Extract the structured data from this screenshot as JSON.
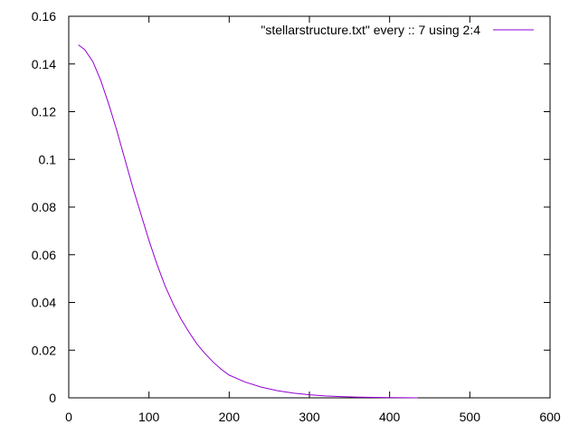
{
  "chart_data": {
    "type": "line",
    "title": "",
    "xlabel": "",
    "ylabel": "",
    "xlim": [
      0,
      600
    ],
    "ylim": [
      0,
      0.16
    ],
    "grid": false,
    "legend_position": "top-right",
    "x_ticks": [
      0,
      100,
      200,
      300,
      400,
      500,
      600
    ],
    "y_ticks": [
      0,
      0.02,
      0.04,
      0.06,
      0.08,
      0.1,
      0.12,
      0.14,
      0.16
    ],
    "x_tick_labels": [
      "0",
      "100",
      "200",
      "300",
      "400",
      "500",
      "600"
    ],
    "y_tick_labels": [
      "0",
      "0.02",
      "0.04",
      "0.06",
      "0.08",
      "0.1",
      "0.12",
      "0.14",
      "0.16"
    ],
    "series": [
      {
        "name": "\"stellarstructure.txt\" every :: 7 using 2:4",
        "color": "#9400d3",
        "x": [
          12,
          20,
          30,
          40,
          50,
          60,
          70,
          80,
          90,
          100,
          110,
          120,
          130,
          140,
          150,
          160,
          170,
          180,
          190,
          200,
          220,
          240,
          260,
          280,
          300,
          320,
          340,
          360,
          380,
          400,
          420,
          435
        ],
        "y": [
          0.148,
          0.146,
          0.141,
          0.133,
          0.123,
          0.112,
          0.1,
          0.088,
          0.077,
          0.066,
          0.056,
          0.047,
          0.0395,
          0.033,
          0.0275,
          0.0225,
          0.0185,
          0.015,
          0.012,
          0.0095,
          0.0066,
          0.0045,
          0.003,
          0.002,
          0.0013,
          0.0008,
          0.0005,
          0.0003,
          0.0002,
          0.0001,
          5e-05,
          2e-05
        ]
      }
    ]
  }
}
